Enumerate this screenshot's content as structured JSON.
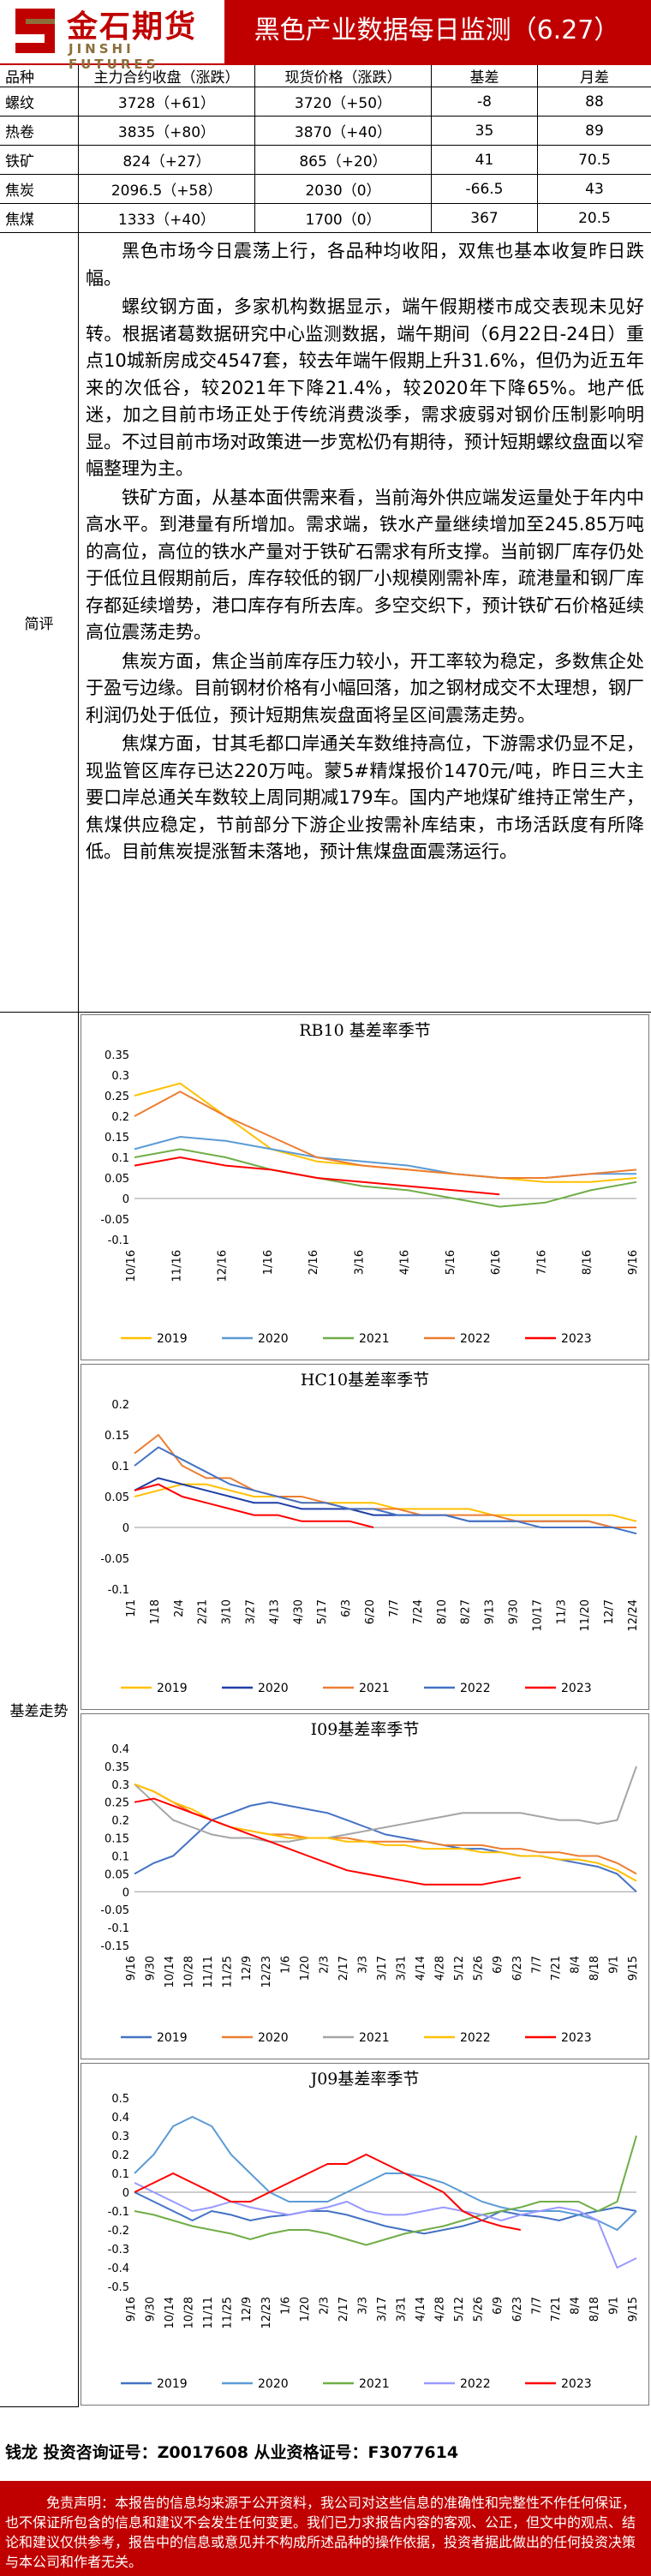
{
  "header": {
    "logo_cn": "金石期货",
    "logo_en": "JINSHI FUTURES",
    "title": "黑色产业数据每日监测（6.27）"
  },
  "table": {
    "headers": [
      "品种",
      "主力合约收盘（涨跌）",
      "现货价格（涨跌）",
      "基差",
      "月差"
    ],
    "rows": [
      [
        "螺纹",
        "3728（+61）",
        "3720（+50）",
        "-8",
        "88"
      ],
      [
        "热卷",
        "3835（+80）",
        "3870（+40）",
        "35",
        "89"
      ],
      [
        "铁矿",
        "824（+27）",
        "865（+20）",
        "41",
        "70.5"
      ],
      [
        "焦炭",
        "2096.5（+58）",
        "2030（0）",
        "-66.5",
        "43"
      ],
      [
        "焦煤",
        "1333（+40）",
        "1700（0）",
        "367",
        "20.5"
      ]
    ]
  },
  "comment": {
    "label": "简评",
    "paragraphs": [
      "黑色市场今日震荡上行，各品种均收阳，双焦也基本收复昨日跌幅。",
      "螺纹钢方面，多家机构数据显示，端午假期楼市成交表现未见好转。根据诸葛数据研究中心监测数据，端午期间（6月22日-24日）重点10城新房成交4547套，较去年端午假期上升31.6%，但仍为近五年来的次低谷，较2021年下降21.4%，较2020年下降65%。地产低迷，加之目前市场正处于传统消费淡季，需求疲弱对钢价压制影响明显。不过目前市场对政策进一步宽松仍有期待，预计短期螺纹盘面以窄幅整理为主。",
      "铁矿方面，从基本面供需来看，当前海外供应端发运量处于年内中高水平。到港量有所增加。需求端，铁水产量继续增加至245.85万吨的高位，高位的铁水产量对于铁矿石需求有所支撑。当前钢厂库存仍处于低位且假期前后，库存较低的钢厂小规模刚需补库，疏港量和钢厂库存都延续增势，港口库存有所去库。多空交织下，预计铁矿石价格延续高位震荡走势。",
      "焦炭方面，焦企当前库存压力较小，开工率较为稳定，多数焦企处于盈亏边缘。目前钢材价格有小幅回落，加之钢材成交不太理想，钢厂利润仍处于低位，预计短期焦炭盘面将呈区间震荡走势。",
      "焦煤方面，甘其毛都口岸通关车数维持高位，下游需求仍显不足，现监管区库存已达220万吨。蒙5#精煤报价1470元/吨，昨日三大主要口岸总通关车数较上周同期减179车。国内产地煤矿维持正常生产，焦煤供应稳定，节前部分下游企业按需补库结束，市场活跃度有所降低。目前焦炭提涨暂未落地，预计焦煤盘面震荡运行。"
    ]
  },
  "basis": {
    "label": "基差走势"
  },
  "chart_data": [
    {
      "type": "line",
      "title": "RB10 基差率季节",
      "x": [
        "10/16",
        "11/16",
        "12/16",
        "1/16",
        "2/16",
        "3/16",
        "4/16",
        "5/16",
        "6/16",
        "7/16",
        "8/16",
        "9/16"
      ],
      "yticks": [
        "0.35",
        "0.3",
        "0.25",
        "0.2",
        "0.15",
        "0.1",
        "0.05",
        "0",
        "-0.05",
        "-0.1"
      ],
      "ylim": [
        -0.1,
        0.35
      ],
      "series": [
        {
          "name": "2019",
          "color": "#ffc000",
          "values": [
            0.25,
            0.28,
            0.2,
            0.12,
            0.09,
            0.08,
            0.07,
            0.06,
            0.05,
            0.04,
            0.04,
            0.05
          ]
        },
        {
          "name": "2020",
          "color": "#5b9bd5",
          "values": [
            0.12,
            0.15,
            0.14,
            0.12,
            0.1,
            0.09,
            0.08,
            0.06,
            0.05,
            0.05,
            0.06,
            0.06
          ]
        },
        {
          "name": "2021",
          "color": "#70ad47",
          "values": [
            0.1,
            0.12,
            0.1,
            0.07,
            0.05,
            0.03,
            0.02,
            0.0,
            -0.02,
            -0.01,
            0.02,
            0.04
          ]
        },
        {
          "name": "2022",
          "color": "#ed7d31",
          "values": [
            0.2,
            0.26,
            0.2,
            0.15,
            0.1,
            0.08,
            0.07,
            0.06,
            0.05,
            0.05,
            0.06,
            0.07
          ]
        },
        {
          "name": "2023",
          "color": "#ff0000",
          "values": [
            0.08,
            0.1,
            0.08,
            0.07,
            0.05,
            0.04,
            0.03,
            0.02,
            0.01,
            null,
            null,
            null
          ]
        }
      ]
    },
    {
      "type": "line",
      "title": "HC10基差率季节",
      "x": [
        "1/1",
        "1/18",
        "2/4",
        "2/21",
        "3/10",
        "3/27",
        "4/13",
        "4/30",
        "5/17",
        "6/3",
        "6/20",
        "7/7",
        "7/24",
        "8/10",
        "8/27",
        "9/13",
        "9/30",
        "10/17",
        "11/3",
        "11/20",
        "12/7",
        "12/24"
      ],
      "yticks": [
        "0.2",
        "0.15",
        "0.1",
        "0.05",
        "0",
        "-0.05",
        "-0.1"
      ],
      "ylim": [
        -0.1,
        0.2
      ],
      "series": [
        {
          "name": "2019",
          "color": "#ffc000",
          "values": [
            0.05,
            0.06,
            0.07,
            0.07,
            0.06,
            0.05,
            0.05,
            0.04,
            0.04,
            0.04,
            0.04,
            0.03,
            0.03,
            0.03,
            0.03,
            0.02,
            0.02,
            0.02,
            0.02,
            0.02,
            0.02,
            0.01
          ]
        },
        {
          "name": "2020",
          "color": "#1f3fa6",
          "values": [
            0.06,
            0.08,
            0.07,
            0.06,
            0.05,
            0.04,
            0.04,
            0.03,
            0.03,
            0.03,
            0.02,
            0.02,
            0.02,
            0.02,
            0.01,
            0.01,
            0.01,
            0.01,
            0.01,
            0.01,
            0.0,
            0.0
          ]
        },
        {
          "name": "2021",
          "color": "#ed7d31",
          "values": [
            0.12,
            0.15,
            0.1,
            0.08,
            0.08,
            0.06,
            0.05,
            0.05,
            0.04,
            0.03,
            0.03,
            0.03,
            0.02,
            0.02,
            0.02,
            0.02,
            0.01,
            0.01,
            0.01,
            0.01,
            0.0,
            0.0
          ]
        },
        {
          "name": "2022",
          "color": "#4472c4",
          "values": [
            0.1,
            0.13,
            0.11,
            0.09,
            0.07,
            0.06,
            0.05,
            0.04,
            0.04,
            0.03,
            0.03,
            0.02,
            0.02,
            0.02,
            0.01,
            0.01,
            0.01,
            0.0,
            0.0,
            0.0,
            0.0,
            -0.01
          ]
        },
        {
          "name": "2023",
          "color": "#ff0000",
          "values": [
            0.06,
            0.07,
            0.05,
            0.04,
            0.03,
            0.02,
            0.02,
            0.01,
            0.01,
            0.01,
            0.0,
            null,
            null,
            null,
            null,
            null,
            null,
            null,
            null,
            null,
            null,
            null
          ]
        }
      ]
    },
    {
      "type": "line",
      "title": "I09基差率季节",
      "x": [
        "9/16",
        "9/30",
        "10/14",
        "10/28",
        "11/11",
        "11/25",
        "12/9",
        "12/23",
        "1/6",
        "1/20",
        "2/3",
        "2/17",
        "3/3",
        "3/17",
        "3/31",
        "4/14",
        "4/28",
        "5/12",
        "5/26",
        "6/9",
        "6/23",
        "7/7",
        "7/21",
        "8/4",
        "8/18",
        "9/1",
        "9/15"
      ],
      "yticks": [
        "0.4",
        "0.35",
        "0.3",
        "0.25",
        "0.2",
        "0.15",
        "0.1",
        "0.05",
        "0",
        "-0.05",
        "-0.1",
        "-0.15"
      ],
      "ylim": [
        -0.15,
        0.4
      ],
      "series": [
        {
          "name": "2019",
          "color": "#4472c4",
          "values": [
            0.05,
            0.08,
            0.1,
            0.15,
            0.2,
            0.22,
            0.24,
            0.25,
            0.24,
            0.23,
            0.22,
            0.2,
            0.18,
            0.16,
            0.15,
            0.14,
            0.13,
            0.12,
            0.12,
            0.11,
            0.1,
            0.1,
            0.09,
            0.08,
            0.07,
            0.05,
            0.0
          ]
        },
        {
          "name": "2020",
          "color": "#ed7d31",
          "values": [
            0.3,
            0.28,
            0.25,
            0.22,
            0.2,
            0.18,
            0.17,
            0.16,
            0.16,
            0.15,
            0.15,
            0.15,
            0.14,
            0.14,
            0.14,
            0.14,
            0.13,
            0.13,
            0.13,
            0.12,
            0.12,
            0.11,
            0.11,
            0.1,
            0.1,
            0.08,
            0.05
          ]
        },
        {
          "name": "2021",
          "color": "#a5a5a5",
          "values": [
            0.3,
            0.25,
            0.2,
            0.18,
            0.16,
            0.15,
            0.15,
            0.14,
            0.14,
            0.15,
            0.15,
            0.16,
            0.17,
            0.18,
            0.19,
            0.2,
            0.21,
            0.22,
            0.22,
            0.22,
            0.22,
            0.21,
            0.2,
            0.2,
            0.19,
            0.2,
            0.35
          ]
        },
        {
          "name": "2022",
          "color": "#ffc000",
          "values": [
            0.3,
            0.28,
            0.25,
            0.23,
            0.2,
            0.18,
            0.17,
            0.16,
            0.15,
            0.15,
            0.15,
            0.14,
            0.14,
            0.13,
            0.13,
            0.12,
            0.12,
            0.12,
            0.11,
            0.11,
            0.1,
            0.1,
            0.09,
            0.09,
            0.08,
            0.06,
            0.03
          ]
        },
        {
          "name": "2023",
          "color": "#ff0000",
          "values": [
            0.25,
            0.26,
            0.24,
            0.22,
            0.2,
            0.18,
            0.16,
            0.14,
            0.12,
            0.1,
            0.08,
            0.06,
            0.05,
            0.04,
            0.03,
            0.02,
            0.02,
            0.02,
            0.02,
            0.03,
            0.04,
            null,
            null,
            null,
            null,
            null,
            null
          ]
        }
      ]
    },
    {
      "type": "line",
      "title": "J09基差率季节",
      "x": [
        "9/16",
        "9/30",
        "10/14",
        "10/28",
        "11/11",
        "11/25",
        "12/9",
        "12/23",
        "1/6",
        "1/20",
        "2/3",
        "2/17",
        "3/3",
        "3/17",
        "3/31",
        "4/14",
        "4/28",
        "5/12",
        "5/26",
        "6/9",
        "6/23",
        "7/7",
        "7/21",
        "8/4",
        "8/18",
        "9/1",
        "9/15"
      ],
      "yticks": [
        "0.5",
        "0.4",
        "0.3",
        "0.2",
        "0.1",
        "0",
        "-0.1",
        "-0.2",
        "-0.3",
        "-0.4",
        "-0.5"
      ],
      "ylim": [
        -0.5,
        0.5
      ],
      "series": [
        {
          "name": "2019",
          "color": "#4472c4",
          "values": [
            0.0,
            -0.05,
            -0.1,
            -0.15,
            -0.1,
            -0.12,
            -0.15,
            -0.13,
            -0.12,
            -0.1,
            -0.1,
            -0.12,
            -0.15,
            -0.18,
            -0.2,
            -0.22,
            -0.2,
            -0.18,
            -0.15,
            -0.1,
            -0.12,
            -0.13,
            -0.15,
            -0.12,
            -0.1,
            -0.08,
            -0.1
          ]
        },
        {
          "name": "2020",
          "color": "#5b9bd5",
          "values": [
            0.1,
            0.2,
            0.35,
            0.4,
            0.35,
            0.2,
            0.1,
            0.0,
            -0.05,
            -0.05,
            -0.05,
            0.0,
            0.05,
            0.1,
            0.1,
            0.08,
            0.05,
            0.0,
            -0.05,
            -0.08,
            -0.1,
            -0.1,
            -0.1,
            -0.12,
            -0.15,
            -0.2,
            -0.1
          ]
        },
        {
          "name": "2021",
          "color": "#70ad47",
          "values": [
            -0.1,
            -0.12,
            -0.15,
            -0.18,
            -0.2,
            -0.22,
            -0.25,
            -0.22,
            -0.2,
            -0.2,
            -0.22,
            -0.25,
            -0.28,
            -0.25,
            -0.22,
            -0.2,
            -0.18,
            -0.15,
            -0.12,
            -0.1,
            -0.08,
            -0.05,
            -0.05,
            -0.05,
            -0.1,
            -0.05,
            0.3
          ]
        },
        {
          "name": "2022",
          "color": "#9999ff",
          "values": [
            0.05,
            0.0,
            -0.05,
            -0.1,
            -0.08,
            -0.05,
            -0.08,
            -0.1,
            -0.12,
            -0.1,
            -0.08,
            -0.05,
            -0.1,
            -0.12,
            -0.12,
            -0.1,
            -0.08,
            -0.1,
            -0.12,
            -0.15,
            -0.12,
            -0.1,
            -0.08,
            -0.1,
            -0.15,
            -0.4,
            -0.35
          ]
        },
        {
          "name": "2023",
          "color": "#ff0000",
          "values": [
            0.0,
            0.05,
            0.1,
            0.05,
            0.0,
            -0.05,
            -0.05,
            0.0,
            0.05,
            0.1,
            0.15,
            0.15,
            0.2,
            0.15,
            0.1,
            0.05,
            0.0,
            -0.1,
            -0.15,
            -0.18,
            -0.2,
            null,
            null,
            null,
            null,
            null,
            null
          ]
        }
      ]
    }
  ],
  "contact": {
    "text": "钱龙  投资咨询证号：Z0017608   从业资格证号：F3077614"
  },
  "footer": {
    "disclaimer": "免责声明：本报告的信息均来源于公开资料，我公司对这些信息的准确性和完整性不作任何保证，也不保证所包含的信息和建议不会发生任何变更。我们已力求报告内容的客观、公正，但文中的观点、结论和建议仅供参考，报告中的信息或意见并不构成所述品种的操作依据，投资者据此做出的任何投资决策与本公司和作者无关。"
  }
}
